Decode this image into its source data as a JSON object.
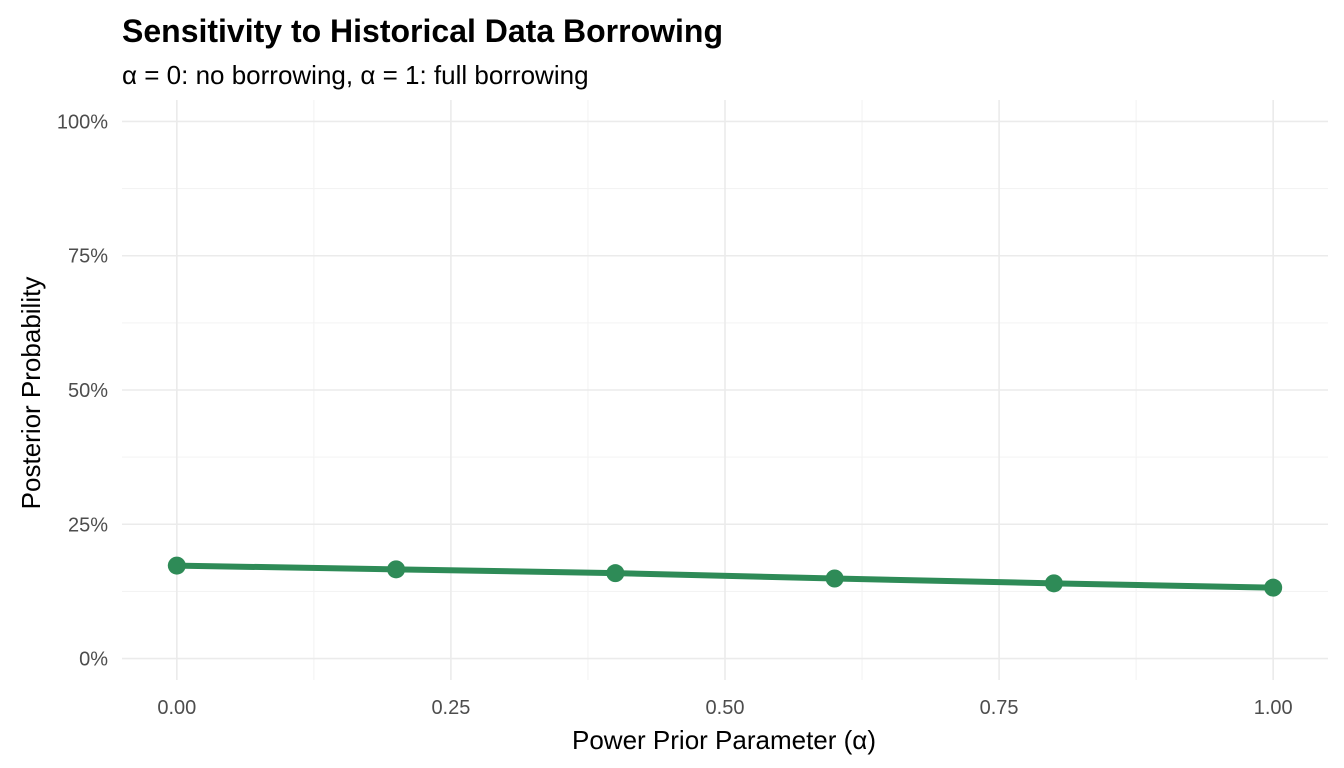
{
  "chart_data": {
    "type": "line",
    "title": "Sensitivity to Historical Data Borrowing",
    "subtitle": "α = 0: no borrowing, α = 1: full borrowing",
    "xlabel": "Power Prior Parameter (α)",
    "ylabel": "Posterior Probability",
    "x": [
      0.0,
      0.2,
      0.4,
      0.6,
      0.8,
      1.0
    ],
    "series": [
      {
        "values": [
          0.173,
          0.166,
          0.159,
          0.149,
          0.14,
          0.132
        ]
      }
    ],
    "xlim": [
      -0.05,
      1.05
    ],
    "ylim": [
      -0.04,
      1.04
    ],
    "x_ticks": [
      0.0,
      0.25,
      0.5,
      0.75,
      1.0
    ],
    "x_tick_labels": [
      "0.00",
      "0.25",
      "0.50",
      "0.75",
      "1.00"
    ],
    "y_ticks": [
      0,
      0.25,
      0.5,
      0.75,
      1.0
    ],
    "y_tick_labels": [
      "0%",
      "25%",
      "50%",
      "75%",
      "100%"
    ],
    "line_color": "#2e8b57",
    "grid": true,
    "legend": "none"
  }
}
